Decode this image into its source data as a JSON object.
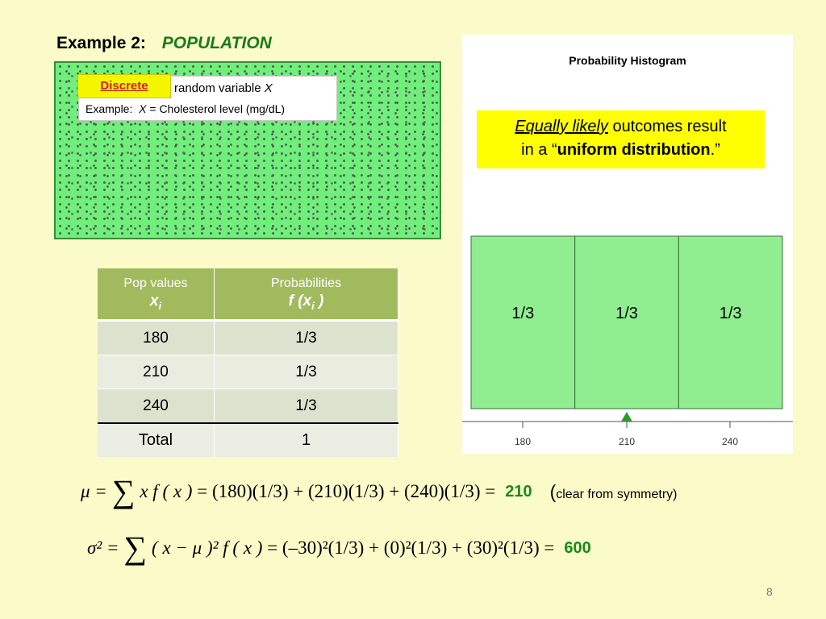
{
  "slide": {
    "title": "Example 2:",
    "subtitle": "POPULATION",
    "page_number": "8"
  },
  "population_box": {
    "tag": "Discrete",
    "rv_text": "random variable",
    "rv_symbol": "X",
    "example_label": "Example:",
    "example_symbol": "X",
    "example_text": "= Cholesterol level (mg/dL)"
  },
  "table": {
    "col1_header": "Pop values",
    "col1_symbol": "x",
    "col1_sub": "i",
    "col2_header": "Probabilities",
    "col2_symbol_pre": "f (x",
    "col2_sub": "i",
    "col2_symbol_post": " )",
    "rows": [
      {
        "x": "180",
        "p": "1/3"
      },
      {
        "x": "210",
        "p": "1/3"
      },
      {
        "x": "240",
        "p": "1/3"
      }
    ],
    "total_label": "Total",
    "total_value": "1"
  },
  "histogram": {
    "title": "Probability Histogram",
    "callout_underlined": "Equally likely",
    "callout_text1": " outcomes result",
    "callout_text2": "in a “",
    "callout_bold": "uniform distribution",
    "callout_end": ".”"
  },
  "chart_data": {
    "type": "bar",
    "title": "Probability Histogram",
    "categories": [
      "180",
      "210",
      "240"
    ],
    "values": [
      0.3333,
      0.3333,
      0.3333
    ],
    "bar_labels": [
      "1/3",
      "1/3",
      "1/3"
    ],
    "marker_at": "210",
    "colors": {
      "bar": "#90ee90",
      "bar_border": "#3c6e3c",
      "marker": "#2e9a2e"
    }
  },
  "formulas": {
    "mean": {
      "lhs": "μ =",
      "sum": "∑",
      "expr": "x f ( x )",
      "rhs": "= (180)(1/3) + (210)(1/3) + (240)(1/3) =",
      "answer": "210",
      "note_open": "(",
      "note": "clear from symmetry)"
    },
    "variance": {
      "lhs": "σ² =",
      "sum": "∑",
      "expr": "( x − μ )² f ( x )",
      "rhs": "= (–30)²(1/3) + (0)²(1/3) + (30)²(1/3) =",
      "answer": "600"
    }
  },
  "colors": {
    "background": "#fbfbc9",
    "title_accent": "#1a7a1a",
    "table_header": "#a2ba5e",
    "callout": "#ffff00",
    "answer": "#1a8a1a"
  }
}
